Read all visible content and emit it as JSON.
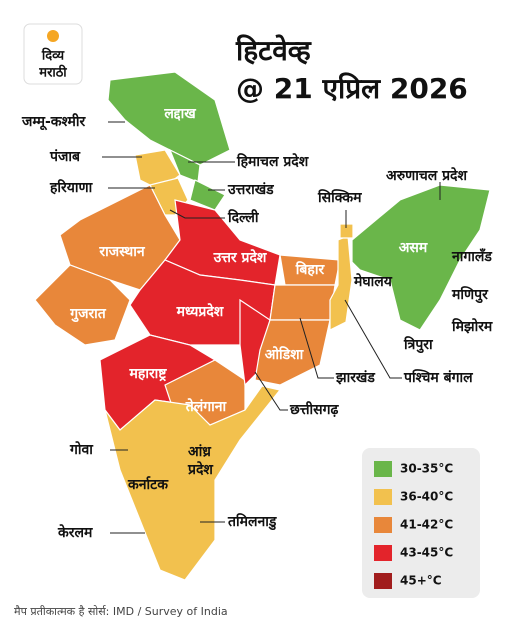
{
  "logo": {
    "line1": "दिव्य",
    "line2": "मराठी"
  },
  "title": {
    "line1": "हिटवेव्ह",
    "line2": "@ 21 एप्रिल 2026"
  },
  "regions": [
    "लद्दाख",
    "जम्मू-कश्मीर",
    "पंजाब",
    "हरियाणा",
    "हिमाचल प्रदेश",
    "उत्तराखंड",
    "दिल्ली",
    "राजस्थान",
    "उत्तर प्रदेश",
    "बिहार",
    "गुजरात",
    "मध्यप्रदेश",
    "ओडिशा",
    "महाराष्ट्र",
    "तेलंगाना",
    "सिक्किम",
    "अरुणाचल प्रदेश",
    "असम",
    "नागालँड",
    "मेघालय",
    "मणिपुर",
    "मिझोरम",
    "त्रिपुरा",
    "झारखंड",
    "पश्चिम बंगाल",
    "छत्तीसगढ़",
    "गोवा",
    [
      "आंध्र",
      "प्रदेश"
    ],
    "कर्नाटक",
    "केरलम",
    "तमिलनाडु"
  ],
  "legend": [
    {
      "label": "30-35°C",
      "color": "#6ab64a"
    },
    {
      "label": "36-40°C",
      "color": "#f2c14e"
    },
    {
      "label": "41-42°C",
      "color": "#e8873a"
    },
    {
      "label": "43-45°C",
      "color": "#e3242b"
    },
    {
      "label": "45+°C",
      "color": "#a11d1d"
    }
  ],
  "source": "मैप प्रतीकात्मक है सोर्स: IMD / Survey of India"
}
